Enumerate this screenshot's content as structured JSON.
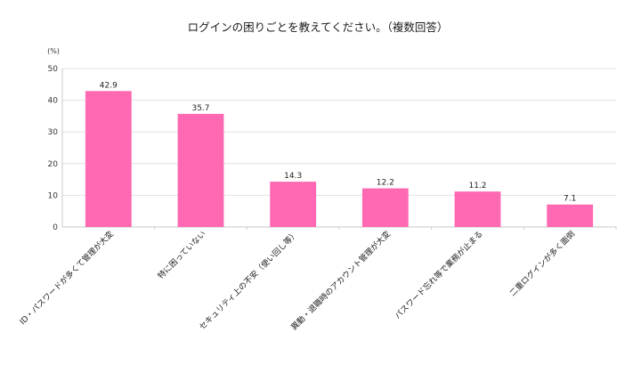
{
  "chart_data": {
    "type": "bar",
    "title": "ログインの困りごとを教えてください。（複数回答）",
    "unit_label": "(%)",
    "categories": [
      "ID・パスワードが多くて管理が大変",
      "特に困っていない",
      "セキュリティ上の不安（使い回し等）",
      "異動・退職時のアカウント管理が大変",
      "パスワード忘れ等で業務が止まる",
      "二重ログインが多く面倒"
    ],
    "values": [
      42.9,
      35.7,
      14.3,
      12.2,
      11.2,
      7.1
    ],
    "data_labels": [
      "42.9",
      "35.7",
      "14.3",
      "12.2",
      "11.2",
      "7.1"
    ],
    "ylim": [
      0,
      50
    ],
    "yticks": [
      0,
      10,
      20,
      30,
      40,
      50
    ],
    "grid": true,
    "legend": "none",
    "bar_color": "#ff69b4"
  }
}
